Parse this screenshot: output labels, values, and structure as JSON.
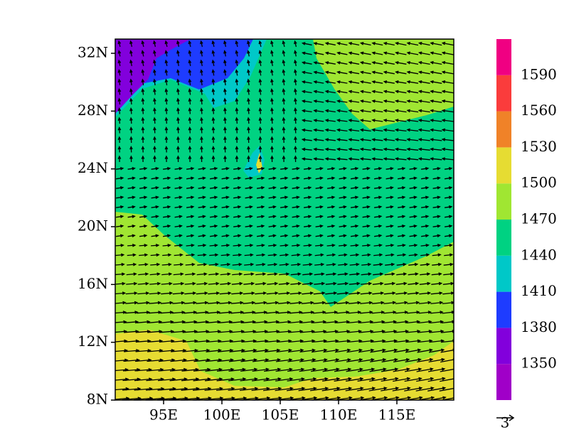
{
  "map": {
    "lat_ticks": [
      {
        "value": 8,
        "label": "8N"
      },
      {
        "value": 12,
        "label": "12N"
      },
      {
        "value": 16,
        "label": "16N"
      },
      {
        "value": 20,
        "label": "20N"
      },
      {
        "value": 24,
        "label": "24N"
      },
      {
        "value": 28,
        "label": "28N"
      },
      {
        "value": 32,
        "label": "32N"
      }
    ],
    "lon_ticks": [
      {
        "value": 95,
        "label": "95E"
      },
      {
        "value": 100,
        "label": "100E"
      },
      {
        "value": 105,
        "label": "105E"
      },
      {
        "value": 110,
        "label": "110E"
      },
      {
        "value": 115,
        "label": "115E"
      }
    ],
    "colorbar": {
      "levels": [
        1350,
        1380,
        1410,
        1440,
        1470,
        1500,
        1530,
        1560,
        1590
      ],
      "colors": [
        "#a000c8",
        "#8200dc",
        "#1e3cff",
        "#00c8c8",
        "#00d282",
        "#a0e632",
        "#e6dc32",
        "#f08228",
        "#fa3c3c",
        "#f00082"
      ]
    },
    "vector_reference": "3"
  }
}
